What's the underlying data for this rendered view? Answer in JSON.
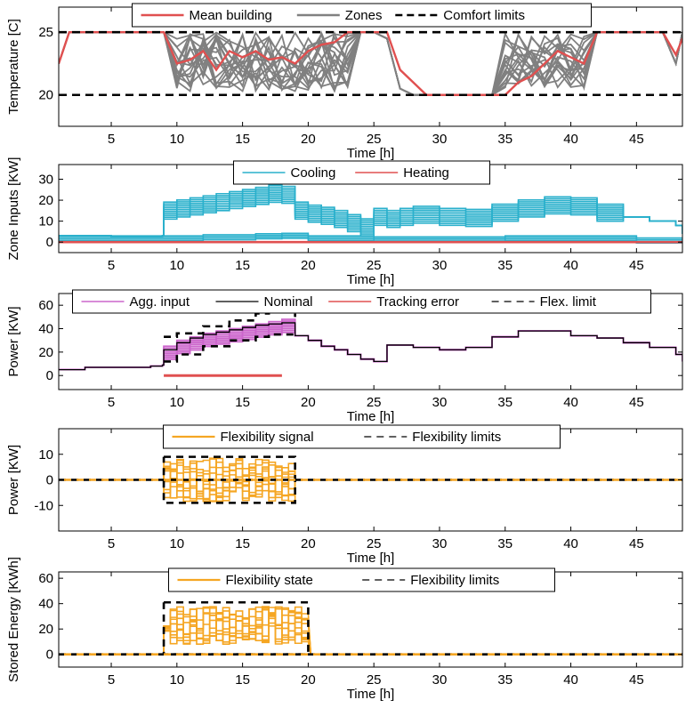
{
  "chart_data": [
    {
      "type": "line",
      "xlabel": "Time [h]",
      "ylabel": "Temperature [C]",
      "xlim": [
        1,
        48.5
      ],
      "ylim": [
        17.5,
        27
      ],
      "xticks": [
        5,
        10,
        15,
        20,
        25,
        30,
        35,
        40,
        45
      ],
      "yticks": [
        20,
        25
      ],
      "legend": {
        "placement": "top-center",
        "entries": [
          "Mean building",
          "Zones",
          "Comfort limits"
        ]
      },
      "colors": {
        "mean": "#e05050",
        "zones": "#808080",
        "limits": "#000000"
      },
      "series": [
        {
          "name": "Mean building",
          "x": [
            1,
            1.8,
            2,
            9,
            10,
            11,
            12,
            13,
            14,
            15,
            16,
            17,
            18,
            19,
            20,
            21,
            22,
            23,
            24,
            25,
            26,
            27,
            28,
            29,
            30,
            31,
            32,
            33,
            34,
            35,
            36,
            37,
            38,
            39,
            40,
            41,
            42,
            43,
            44,
            45,
            46,
            47,
            48,
            48.5
          ],
          "y": [
            22.5,
            25,
            25,
            25,
            22.5,
            22.8,
            23.5,
            22,
            23.5,
            23,
            23.5,
            22.8,
            23,
            22.5,
            23.5,
            24,
            24.2,
            25,
            25,
            25,
            25,
            22,
            21,
            20,
            20,
            20,
            20,
            20,
            20,
            20,
            21,
            21.5,
            22.5,
            23.5,
            23,
            22.5,
            25,
            25,
            25,
            25,
            25,
            25,
            23.2,
            24.5
          ]
        },
        {
          "name": "Zones",
          "x": [
            1,
            1.8,
            2,
            9,
            10,
            11,
            12,
            13,
            14,
            15,
            16,
            17,
            18,
            19,
            20,
            21,
            22,
            23,
            24,
            25,
            26,
            27,
            28,
            29,
            30,
            31,
            32,
            33,
            34,
            35,
            36,
            37,
            38,
            39,
            40,
            41,
            42,
            43,
            44,
            45,
            46,
            47,
            48,
            48.5
          ],
          "y": [
            22.5,
            25,
            25,
            25,
            20.8,
            24.5,
            20.5,
            24.5,
            21,
            24.5,
            20.5,
            24.5,
            20.5,
            24.8,
            23,
            24,
            25,
            23.8,
            25,
            25,
            24.5,
            20.5,
            20,
            20,
            20,
            20,
            20,
            20,
            20,
            20.5,
            24,
            23.5,
            25,
            21,
            25,
            22,
            25,
            25,
            25,
            25,
            25,
            25,
            22.5,
            25
          ]
        },
        {
          "name": "Comfort limits upper",
          "x": [
            1,
            48.5
          ],
          "y": [
            25,
            25
          ]
        },
        {
          "name": "Comfort limits lower",
          "x": [
            1,
            48.5
          ],
          "y": [
            20,
            20
          ]
        }
      ]
    },
    {
      "type": "line",
      "xlabel": "Time [h]",
      "ylabel": "Zone Inputs [KW]",
      "xlim": [
        1,
        48.5
      ],
      "ylim": [
        -5,
        37
      ],
      "xticks": [
        5,
        10,
        15,
        20,
        25,
        30,
        35,
        40,
        45
      ],
      "yticks": [
        0,
        10,
        20,
        30
      ],
      "legend": {
        "placement": "top-center",
        "entries": [
          "Cooling",
          "Heating"
        ]
      },
      "colors": {
        "cooling": "#2ab0cc",
        "heating": "#e05050"
      },
      "series": [
        {
          "name": "Cooling",
          "x": [
            1,
            5,
            8.9,
            9,
            10,
            11,
            12,
            13,
            14,
            15,
            16,
            17,
            18,
            19,
            20,
            21,
            22,
            23,
            24,
            25,
            26,
            27,
            28,
            30,
            32,
            34,
            36,
            38,
            40,
            42,
            44,
            46,
            48,
            48.5
          ],
          "y": [
            3,
            2.5,
            3,
            15,
            16,
            17,
            18,
            19,
            20,
            21,
            22,
            23,
            22.5,
            15,
            13.5,
            12.5,
            11,
            9,
            7,
            12,
            11,
            12,
            13,
            12,
            11.5,
            14,
            16,
            17.5,
            17,
            14,
            12,
            10,
            8,
            4
          ]
        },
        {
          "name": "Heating",
          "x": [
            1,
            48.5
          ],
          "y": [
            0,
            0
          ]
        }
      ]
    },
    {
      "type": "line",
      "xlabel": "Time [h]",
      "ylabel": "Power [KW]",
      "xlim": [
        1,
        48.5
      ],
      "ylim": [
        -12,
        70
      ],
      "xticks": [
        5,
        10,
        15,
        20,
        25,
        30,
        35,
        40,
        45
      ],
      "yticks": [
        0,
        20,
        40,
        60
      ],
      "legend": {
        "placement": "top-center",
        "entries": [
          "Agg. input",
          "Nominal",
          "Tracking error",
          "Flex. limit"
        ]
      },
      "colors": {
        "agg": "#cc66cc",
        "nominal": "#000000",
        "error": "#e05050",
        "limit": "#000000"
      },
      "series": [
        {
          "name": "Agg. input",
          "x": [
            1,
            3,
            5,
            8,
            8.9,
            9,
            10,
            11,
            12,
            13,
            14,
            15,
            16,
            17,
            18,
            19,
            20,
            21,
            22,
            23,
            24,
            25,
            26,
            28,
            30,
            32,
            34,
            36,
            38,
            40,
            42,
            44,
            46,
            48,
            48.5
          ],
          "y": [
            5,
            7,
            7,
            8,
            9,
            25,
            30,
            33,
            36,
            38,
            40,
            42,
            44,
            46,
            48,
            34,
            30,
            25,
            22,
            18,
            14,
            12,
            26,
            24,
            22,
            24,
            33,
            38,
            38,
            34,
            32,
            28,
            24,
            18,
            12
          ]
        },
        {
          "name": "Nominal",
          "x": [
            1,
            3,
            5,
            8,
            8.9,
            9,
            10,
            11,
            12,
            13,
            14,
            15,
            16,
            17,
            18,
            19,
            20,
            21,
            22,
            23,
            24,
            25,
            26,
            28,
            30,
            32,
            34,
            36,
            38,
            40,
            42,
            44,
            46,
            48,
            48.5
          ],
          "y": [
            5,
            7,
            7,
            8,
            9,
            22,
            28,
            32,
            35,
            37,
            39,
            41,
            43,
            44,
            45,
            34,
            30,
            25,
            22,
            18,
            14,
            12,
            26,
            24,
            22,
            24,
            33,
            38,
            38,
            34,
            32,
            28,
            24,
            18,
            12
          ]
        },
        {
          "name": "Tracking error",
          "x": [
            9,
            18
          ],
          "y": [
            0,
            0
          ]
        },
        {
          "name": "Flex. limit upper",
          "x": [
            9,
            10,
            12,
            14,
            16,
            17,
            19
          ],
          "y": [
            33,
            36,
            42,
            47,
            53,
            56,
            50
          ]
        },
        {
          "name": "Flex. limit lower",
          "x": [
            9,
            10,
            12,
            14,
            16,
            17,
            19
          ],
          "y": [
            12,
            18,
            25,
            30,
            33,
            35,
            34
          ]
        }
      ]
    },
    {
      "type": "line",
      "xlabel": "Time [h]",
      "ylabel": "Power [KW]",
      "xlim": [
        1,
        48.5
      ],
      "ylim": [
        -20,
        20
      ],
      "xticks": [
        5,
        10,
        15,
        20,
        25,
        30,
        35,
        40,
        45
      ],
      "yticks": [
        -10,
        0,
        10
      ],
      "legend": {
        "placement": "top-center",
        "entries": [
          "Flexibility signal",
          "Flexibility limits"
        ]
      },
      "colors": {
        "signal": "#f5a623",
        "limits": "#000000"
      },
      "series": [
        {
          "name": "Flexibility signal",
          "x": [
            1,
            9,
            9.5,
            10,
            10.5,
            11,
            11.5,
            12,
            12.5,
            13,
            13.5,
            14,
            14.5,
            15,
            15.5,
            16,
            16.5,
            17,
            17.5,
            18,
            18.5,
            19,
            48.5
          ],
          "y": [
            0,
            0,
            8,
            -6,
            5,
            -8,
            7,
            -4,
            8,
            -7,
            6,
            -8,
            7,
            -5,
            8,
            -6,
            7,
            -8,
            6,
            -7,
            8,
            0,
            0
          ]
        },
        {
          "name": "Flexibility limits upper",
          "x": [
            9,
            19
          ],
          "y": [
            9,
            9
          ]
        },
        {
          "name": "Flexibility limits lower",
          "x": [
            9,
            19
          ],
          "y": [
            -9,
            -9
          ]
        }
      ]
    },
    {
      "type": "line",
      "xlabel": "Time [h]",
      "ylabel": "Stored Energy [KWh]",
      "xlim": [
        1,
        48.5
      ],
      "ylim": [
        -10,
        65
      ],
      "xticks": [
        5,
        10,
        15,
        20,
        25,
        30,
        35,
        40,
        45
      ],
      "yticks": [
        0,
        20,
        40,
        60
      ],
      "legend": {
        "placement": "top-center",
        "entries": [
          "Flexibility state",
          "Flexibility limits"
        ]
      },
      "colors": {
        "state": "#f5a623",
        "limits": "#000000"
      },
      "series": [
        {
          "name": "Flexibility state",
          "x": [
            1,
            9,
            9.3,
            10,
            11,
            12,
            13,
            14,
            15,
            16,
            17,
            18,
            19,
            20,
            20.2,
            48.5
          ],
          "y": [
            0,
            0,
            15,
            25,
            12,
            30,
            18,
            32,
            10,
            28,
            20,
            35,
            15,
            30,
            0,
            0
          ]
        },
        {
          "name": "Flexibility limits upper",
          "x": [
            9,
            20
          ],
          "y": [
            41,
            41
          ]
        },
        {
          "name": "Flexibility limits lower",
          "x": [
            9,
            20
          ],
          "y": [
            0,
            0
          ]
        }
      ]
    }
  ]
}
